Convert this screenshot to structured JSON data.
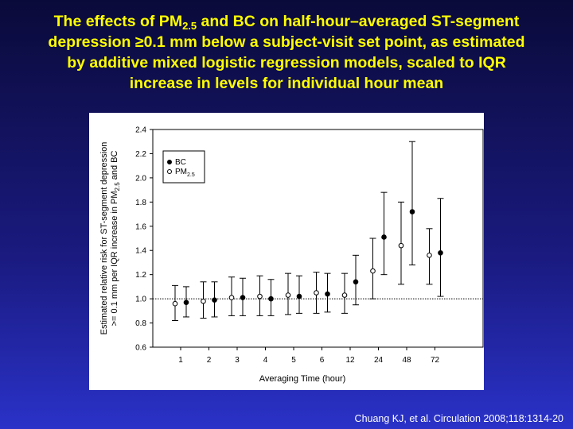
{
  "title": {
    "line1_pre": "The effects of PM",
    "line1_sub": "2.5",
    "line1_post": " and BC on half-hour–averaged ST-segment",
    "lines": [
      "depression ≥0.1 mm below a subject-visit set point, as estimated",
      "by additive mixed logistic regression models, scaled to IQR",
      "increase in levels for individual hour mean"
    ]
  },
  "chart_data": {
    "type": "errorbar",
    "ylabel": {
      "line1": "Estimated relative risk for ST-segment depression",
      "line2_pre": ">= 0.1 mm per IQR increase in PM",
      "line2_sub": "2.5",
      "line2_post": " and BC"
    },
    "xlabel": "Averaging Time (hour)",
    "categories": [
      "1",
      "2",
      "3",
      "4",
      "5",
      "6",
      "12",
      "24",
      "48",
      "72"
    ],
    "series": [
      {
        "name": "BC",
        "marker": "filled",
        "color": "#000000",
        "values": [
          0.97,
          0.99,
          1.01,
          1.0,
          1.02,
          1.04,
          1.14,
          1.51,
          1.72,
          1.38
        ],
        "lower": [
          0.85,
          0.85,
          0.86,
          0.86,
          0.88,
          0.89,
          0.95,
          1.2,
          1.28,
          1.02
        ],
        "upper": [
          1.1,
          1.14,
          1.17,
          1.16,
          1.19,
          1.21,
          1.36,
          1.88,
          2.3,
          1.83
        ]
      },
      {
        "name": "PM",
        "name_sub": "2.5",
        "marker": "open",
        "color": "#000000",
        "values": [
          0.96,
          0.98,
          1.01,
          1.02,
          1.03,
          1.05,
          1.03,
          1.23,
          1.44,
          1.36
        ],
        "lower": [
          0.82,
          0.84,
          0.86,
          0.86,
          0.87,
          0.88,
          0.88,
          1.0,
          1.12,
          1.12
        ],
        "upper": [
          1.11,
          1.14,
          1.18,
          1.19,
          1.21,
          1.22,
          1.21,
          1.5,
          1.8,
          1.58
        ]
      }
    ],
    "ylim": [
      0.6,
      2.4
    ],
    "yticks": [
      {
        "value": 0.6,
        "label": "0.6"
      },
      {
        "value": 0.8,
        "label": "0.8"
      },
      {
        "value": 1.0,
        "label": "1.0"
      },
      {
        "value": 1.2,
        "label": "1.2"
      },
      {
        "value": 1.4,
        "label": "1.4"
      },
      {
        "value": 1.6,
        "label": "1.6"
      },
      {
        "value": 1.8,
        "label": "1.8"
      },
      {
        "value": 2.0,
        "label": "2.0"
      },
      {
        "value": 2.2,
        "label": "2.2"
      },
      {
        "value": 2.4,
        "label": "2.4"
      }
    ],
    "reference_line": 1.0,
    "legend": "upper left"
  },
  "footer": "Chuang KJ, et al. Circulation 2008;118:1314-20"
}
